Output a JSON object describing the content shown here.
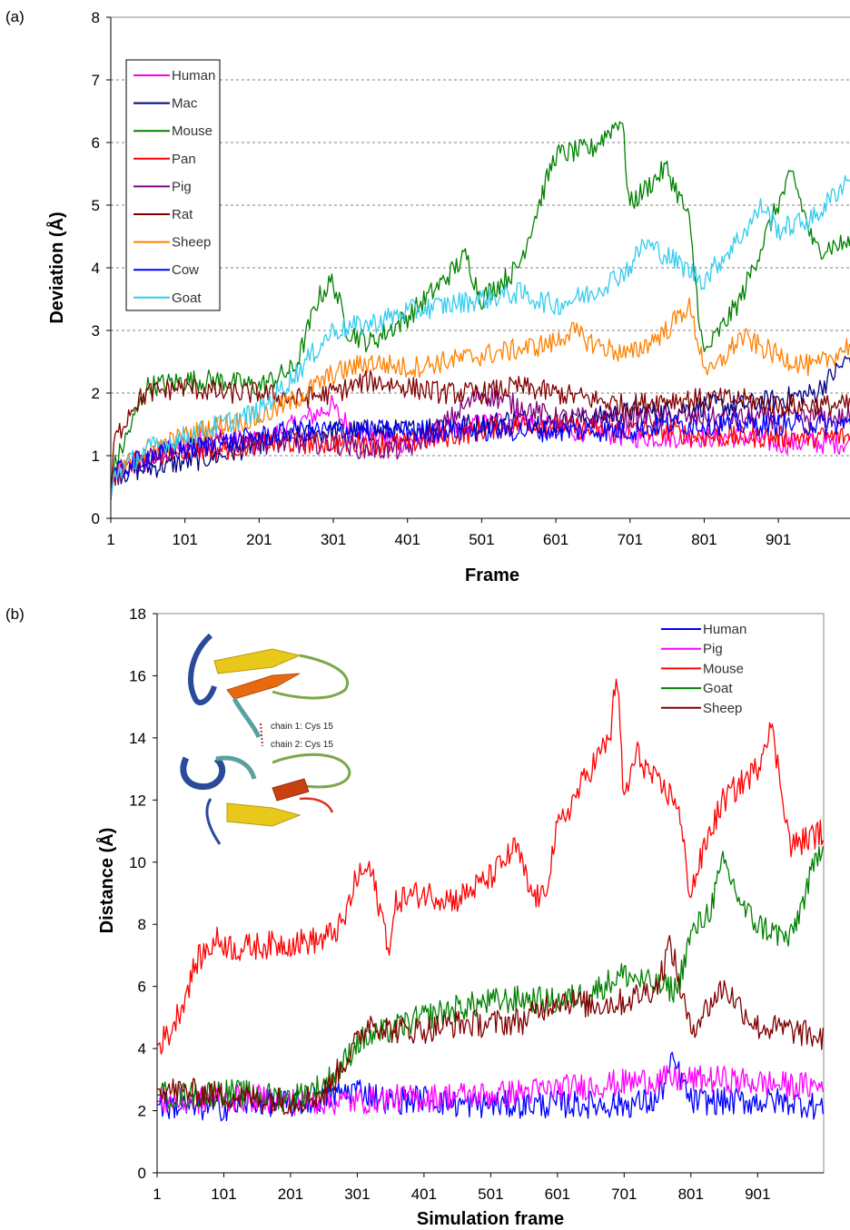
{
  "chart_data": [
    {
      "panel_label": "(a)",
      "type": "line",
      "xlabel": "Frame",
      "ylabel": "Deviation (Å)",
      "xlim": [
        1,
        1000
      ],
      "ylim": [
        0,
        8
      ],
      "x_ticks": [
        "1",
        "101",
        "201",
        "301",
        "401",
        "501",
        "601",
        "701",
        "801",
        "901"
      ],
      "y_ticks": [
        "0",
        "1",
        "2",
        "3",
        "4",
        "5",
        "6",
        "7",
        "8"
      ],
      "grid": "horizontal dashed",
      "legend": "top-left",
      "series": [
        {
          "name": "Human",
          "color": "#ff00ff",
          "x": [
            1,
            5,
            50,
            100,
            150,
            200,
            250,
            300,
            310,
            350,
            400,
            450,
            500,
            550,
            600,
            650,
            700,
            750,
            800,
            850,
            900,
            950,
            1000
          ],
          "y": [
            0.3,
            0.7,
            0.9,
            1.2,
            1.3,
            1.2,
            1.5,
            1.8,
            1.6,
            1.3,
            1.2,
            1.4,
            1.5,
            1.6,
            1.4,
            1.4,
            1.3,
            1.3,
            1.3,
            1.3,
            1.2,
            1.2,
            1.2
          ]
        },
        {
          "name": "Mac",
          "color": "#000080",
          "x": [
            1,
            5,
            50,
            100,
            150,
            200,
            250,
            300,
            350,
            400,
            450,
            500,
            550,
            600,
            650,
            700,
            750,
            800,
            850,
            900,
            950,
            1000
          ],
          "y": [
            0.3,
            0.7,
            0.8,
            0.9,
            1.0,
            1.2,
            1.3,
            1.4,
            1.4,
            1.4,
            1.5,
            1.5,
            1.6,
            1.5,
            1.6,
            1.7,
            1.7,
            1.8,
            1.8,
            1.9,
            2.0,
            2.6
          ]
        },
        {
          "name": "Mouse",
          "color": "#008000",
          "x": [
            1,
            5,
            50,
            100,
            150,
            200,
            250,
            280,
            300,
            320,
            350,
            400,
            450,
            480,
            500,
            550,
            600,
            650,
            690,
            700,
            750,
            780,
            800,
            850,
            900,
            920,
            950,
            1000
          ],
          "y": [
            0.3,
            0.8,
            2.1,
            2.2,
            2.2,
            2.1,
            2.4,
            3.5,
            3.8,
            3.0,
            2.8,
            3.2,
            3.8,
            4.2,
            3.5,
            4.0,
            5.8,
            5.9,
            6.4,
            5.0,
            5.6,
            4.8,
            2.6,
            3.5,
            5.0,
            5.5,
            4.3,
            4.4
          ]
        },
        {
          "name": "Pan",
          "color": "#ff0000",
          "x": [
            1,
            5,
            50,
            100,
            150,
            200,
            250,
            300,
            350,
            400,
            450,
            500,
            550,
            600,
            650,
            700,
            750,
            800,
            850,
            900,
            950,
            1000
          ],
          "y": [
            0.3,
            0.7,
            1.0,
            1.1,
            1.1,
            1.2,
            1.2,
            1.2,
            1.2,
            1.2,
            1.3,
            1.4,
            1.5,
            1.5,
            1.4,
            1.4,
            1.4,
            1.3,
            1.3,
            1.3,
            1.3,
            1.3
          ]
        },
        {
          "name": "Pig",
          "color": "#800080",
          "x": [
            1,
            5,
            50,
            100,
            150,
            200,
            250,
            300,
            350,
            400,
            450,
            500,
            550,
            600,
            650,
            700,
            750,
            800,
            850,
            900,
            950,
            1000
          ],
          "y": [
            0.3,
            0.7,
            1.0,
            1.1,
            1.2,
            1.2,
            1.2,
            1.2,
            1.1,
            1.1,
            1.5,
            2.0,
            1.8,
            1.6,
            1.6,
            1.6,
            1.6,
            1.6,
            1.6,
            1.6,
            1.6,
            1.6
          ]
        },
        {
          "name": "Rat",
          "color": "#800000",
          "x": [
            1,
            5,
            30,
            50,
            100,
            150,
            200,
            250,
            300,
            350,
            400,
            450,
            500,
            550,
            600,
            650,
            700,
            750,
            800,
            850,
            900,
            950,
            1000
          ],
          "y": [
            0.3,
            1.2,
            1.8,
            2.0,
            2.1,
            2.0,
            2.0,
            1.9,
            2.0,
            2.2,
            2.1,
            2.0,
            2.0,
            2.1,
            2.0,
            1.9,
            1.8,
            1.9,
            1.9,
            1.9,
            1.8,
            1.8,
            1.8
          ]
        },
        {
          "name": "Sheep",
          "color": "#ff8000",
          "x": [
            1,
            5,
            50,
            100,
            150,
            200,
            250,
            300,
            350,
            400,
            450,
            500,
            550,
            600,
            620,
            650,
            700,
            750,
            780,
            800,
            810,
            850,
            900,
            950,
            1000
          ],
          "y": [
            0.3,
            0.7,
            1.1,
            1.3,
            1.5,
            1.6,
            1.9,
            2.3,
            2.5,
            2.4,
            2.5,
            2.6,
            2.7,
            2.8,
            3.0,
            2.8,
            2.6,
            3.0,
            3.4,
            2.5,
            2.3,
            2.9,
            2.6,
            2.4,
            2.8
          ]
        },
        {
          "name": "Cow",
          "color": "#0000ff",
          "x": [
            1,
            5,
            50,
            100,
            150,
            200,
            250,
            300,
            350,
            400,
            450,
            500,
            550,
            600,
            650,
            700,
            750,
            800,
            850,
            900,
            950,
            1000
          ],
          "y": [
            0.3,
            0.7,
            1.0,
            1.1,
            1.2,
            1.3,
            1.4,
            1.4,
            1.4,
            1.4,
            1.4,
            1.4,
            1.4,
            1.4,
            1.4,
            1.4,
            1.5,
            1.5,
            1.5,
            1.5,
            1.5,
            1.5
          ]
        },
        {
          "name": "Goat",
          "color": "#33ccee",
          "x": [
            1,
            5,
            50,
            100,
            150,
            200,
            250,
            300,
            350,
            400,
            450,
            500,
            550,
            600,
            650,
            700,
            720,
            750,
            800,
            850,
            880,
            900,
            950,
            1000
          ],
          "y": [
            0.3,
            0.7,
            1.1,
            1.3,
            1.5,
            1.7,
            2.3,
            3.0,
            3.1,
            3.3,
            3.4,
            3.5,
            3.6,
            3.4,
            3.6,
            4.0,
            4.4,
            4.2,
            3.8,
            4.5,
            5.0,
            4.6,
            4.8,
            5.5
          ]
        }
      ]
    },
    {
      "panel_label": "(b)",
      "type": "line",
      "xlabel": "Simulation frame",
      "ylabel": "Distance (Å)",
      "xlim": [
        1,
        1000
      ],
      "ylim": [
        0,
        18
      ],
      "x_ticks": [
        "1",
        "101",
        "201",
        "301",
        "401",
        "501",
        "601",
        "701",
        "801",
        "901"
      ],
      "y_ticks": [
        "0",
        "2",
        "4",
        "6",
        "8",
        "10",
        "12",
        "14",
        "16",
        "18"
      ],
      "grid": "none",
      "legend": "top-right",
      "inset_labels": [
        "chain 1: Cys 15",
        "chain 2: Cys 15"
      ],
      "series": [
        {
          "name": "Human",
          "color": "#0000ff",
          "x": [
            1,
            50,
            100,
            150,
            200,
            250,
            300,
            350,
            400,
            450,
            500,
            550,
            600,
            650,
            700,
            750,
            775,
            800,
            850,
            900,
            950,
            1000
          ],
          "y": [
            2.2,
            2.1,
            2.1,
            2.3,
            2.2,
            2.4,
            2.7,
            2.3,
            2.4,
            2.2,
            2.2,
            2.2,
            2.2,
            2.2,
            2.2,
            2.3,
            3.6,
            2.3,
            2.3,
            2.3,
            2.3,
            2.1
          ]
        },
        {
          "name": "Pig",
          "color": "#ff00ff",
          "x": [
            1,
            50,
            100,
            150,
            200,
            250,
            300,
            350,
            400,
            450,
            500,
            550,
            600,
            650,
            700,
            750,
            800,
            850,
            900,
            950,
            1000
          ],
          "y": [
            2.3,
            2.3,
            2.4,
            2.4,
            2.3,
            2.3,
            2.3,
            2.4,
            2.4,
            2.5,
            2.5,
            2.6,
            2.7,
            2.8,
            2.9,
            3.0,
            3.0,
            3.0,
            2.9,
            2.8,
            2.8
          ]
        },
        {
          "name": "Mouse",
          "color": "#ff0000",
          "x": [
            1,
            20,
            40,
            60,
            90,
            120,
            150,
            200,
            250,
            280,
            300,
            320,
            350,
            360,
            400,
            450,
            500,
            540,
            560,
            580,
            600,
            650,
            680,
            690,
            700,
            720,
            750,
            780,
            800,
            830,
            850,
            900,
            920,
            940,
            950,
            1000
          ],
          "y": [
            4.1,
            4.5,
            5.5,
            6.8,
            7.5,
            7.2,
            7.3,
            7.4,
            7.5,
            8.0,
            9.5,
            9.8,
            7.2,
            8.8,
            9.0,
            8.8,
            9.5,
            10.5,
            9.0,
            8.8,
            11.0,
            13.0,
            14.0,
            16.3,
            12.0,
            13.5,
            12.5,
            12.0,
            9.0,
            11.0,
            12.0,
            13.0,
            14.5,
            12.0,
            10.5,
            11.0
          ]
        },
        {
          "name": "Goat",
          "color": "#008000",
          "x": [
            1,
            50,
            100,
            150,
            200,
            250,
            280,
            300,
            350,
            400,
            450,
            500,
            550,
            600,
            650,
            700,
            750,
            780,
            800,
            830,
            850,
            880,
            900,
            950,
            1000
          ],
          "y": [
            2.5,
            2.5,
            2.6,
            2.5,
            2.4,
            2.8,
            3.5,
            4.2,
            4.6,
            5.0,
            5.3,
            5.5,
            5.6,
            5.5,
            5.8,
            6.4,
            6.0,
            5.9,
            7.6,
            8.5,
            10.0,
            8.5,
            8.0,
            7.5,
            10.8
          ]
        },
        {
          "name": "Sheep",
          "color": "#800000",
          "x": [
            1,
            50,
            100,
            150,
            200,
            250,
            300,
            320,
            350,
            400,
            450,
            500,
            550,
            600,
            650,
            700,
            750,
            770,
            800,
            850,
            900,
            950,
            1000
          ],
          "y": [
            2.7,
            2.6,
            2.5,
            2.4,
            2.3,
            2.5,
            4.2,
            4.9,
            4.6,
            4.6,
            4.8,
            4.8,
            4.9,
            5.6,
            5.4,
            5.5,
            6.0,
            7.4,
            4.6,
            6.0,
            4.7,
            4.6,
            4.3
          ]
        }
      ]
    }
  ]
}
